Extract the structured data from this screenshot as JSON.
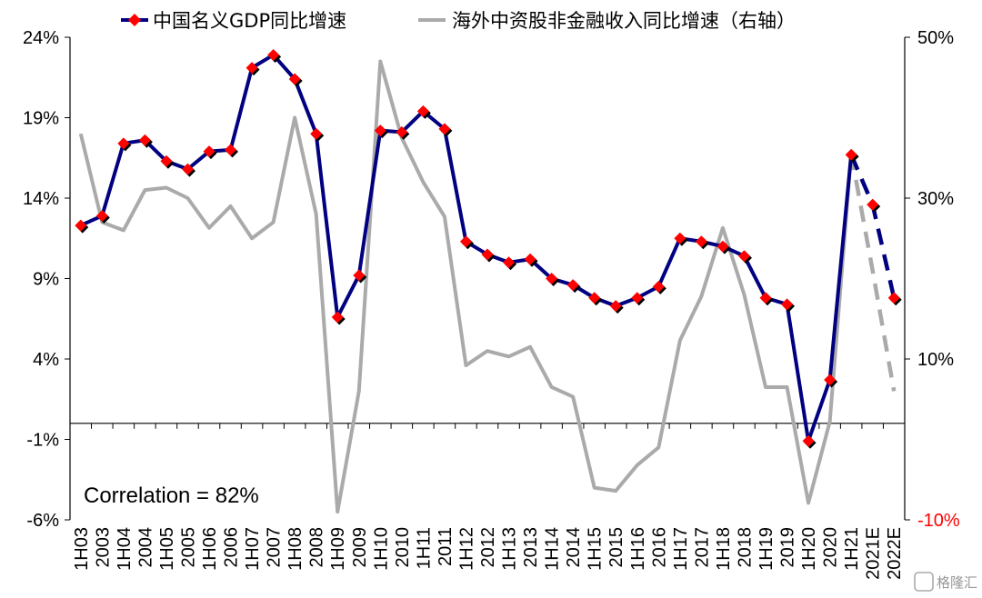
{
  "chart_data": {
    "type": "line",
    "categories": [
      "1H03",
      "2003",
      "1H04",
      "2004",
      "1H05",
      "2005",
      "1H06",
      "2006",
      "1H07",
      "2007",
      "1H08",
      "2008",
      "1H09",
      "2009",
      "1H10",
      "2010",
      "1H11",
      "2011",
      "1H12",
      "2012",
      "1H13",
      "2013",
      "1H14",
      "2014",
      "1H15",
      "2015",
      "1H16",
      "2016",
      "1H17",
      "2017",
      "1H18",
      "2018",
      "1H19",
      "2019",
      "1H20",
      "2020",
      "1H21",
      "2021E",
      "2022E"
    ],
    "y_left": {
      "range": [
        -6,
        24
      ],
      "ticks": [
        24,
        19,
        14,
        9,
        4,
        -1,
        -6
      ],
      "tick_labels": [
        "24%",
        "19%",
        "14%",
        "9%",
        "4%",
        "-1%",
        "-6%"
      ]
    },
    "y_right": {
      "range": [
        -10,
        50
      ],
      "ticks": [
        50,
        30,
        10,
        -10
      ],
      "tick_labels": [
        "50%",
        "30%",
        "10%",
        "-10%"
      ],
      "label_colors": [
        "#000000",
        "#000000",
        "#000000",
        "#ff0000"
      ]
    },
    "series": [
      {
        "name": "中国名义GDP同比增速",
        "axis": "left",
        "color": "#000080",
        "marker_color": "#ff0000",
        "values": [
          12.3,
          12.9,
          17.4,
          17.6,
          16.3,
          15.8,
          16.9,
          17.0,
          22.1,
          22.9,
          21.4,
          18.0,
          6.6,
          9.2,
          18.2,
          18.1,
          19.4,
          18.3,
          11.3,
          10.5,
          10.0,
          10.2,
          9.0,
          8.6,
          7.8,
          7.3,
          7.8,
          8.5,
          11.5,
          11.3,
          11.0,
          10.4,
          7.8,
          7.4,
          -1.1,
          2.7,
          16.7,
          13.6,
          7.8
        ],
        "dashed_from_index": 36
      },
      {
        "name": "海外中资股非金融收入同比增速（右轴）",
        "axis": "right",
        "color": "#aaaaaa",
        "values": [
          38,
          27,
          26,
          31,
          31.3,
          30,
          26.3,
          29,
          25,
          27,
          40,
          28,
          -9,
          6,
          47,
          37.5,
          32,
          27.7,
          9.2,
          11,
          10.3,
          11.5,
          6.5,
          5.3,
          -6,
          -6.4,
          -3.2,
          -1,
          12.3,
          17.8,
          26.3,
          18,
          6.5,
          6.5,
          -7.9,
          2.2,
          35.5,
          21,
          6
        ],
        "dashed_from_index": 36
      }
    ],
    "legend": [
      "中国名义GDP同比增速",
      "海外中资股非金融收入同比增速（右轴）"
    ],
    "legend_position": "top",
    "annotation": "Correlation = 82%",
    "watermark": "格隆汇"
  }
}
